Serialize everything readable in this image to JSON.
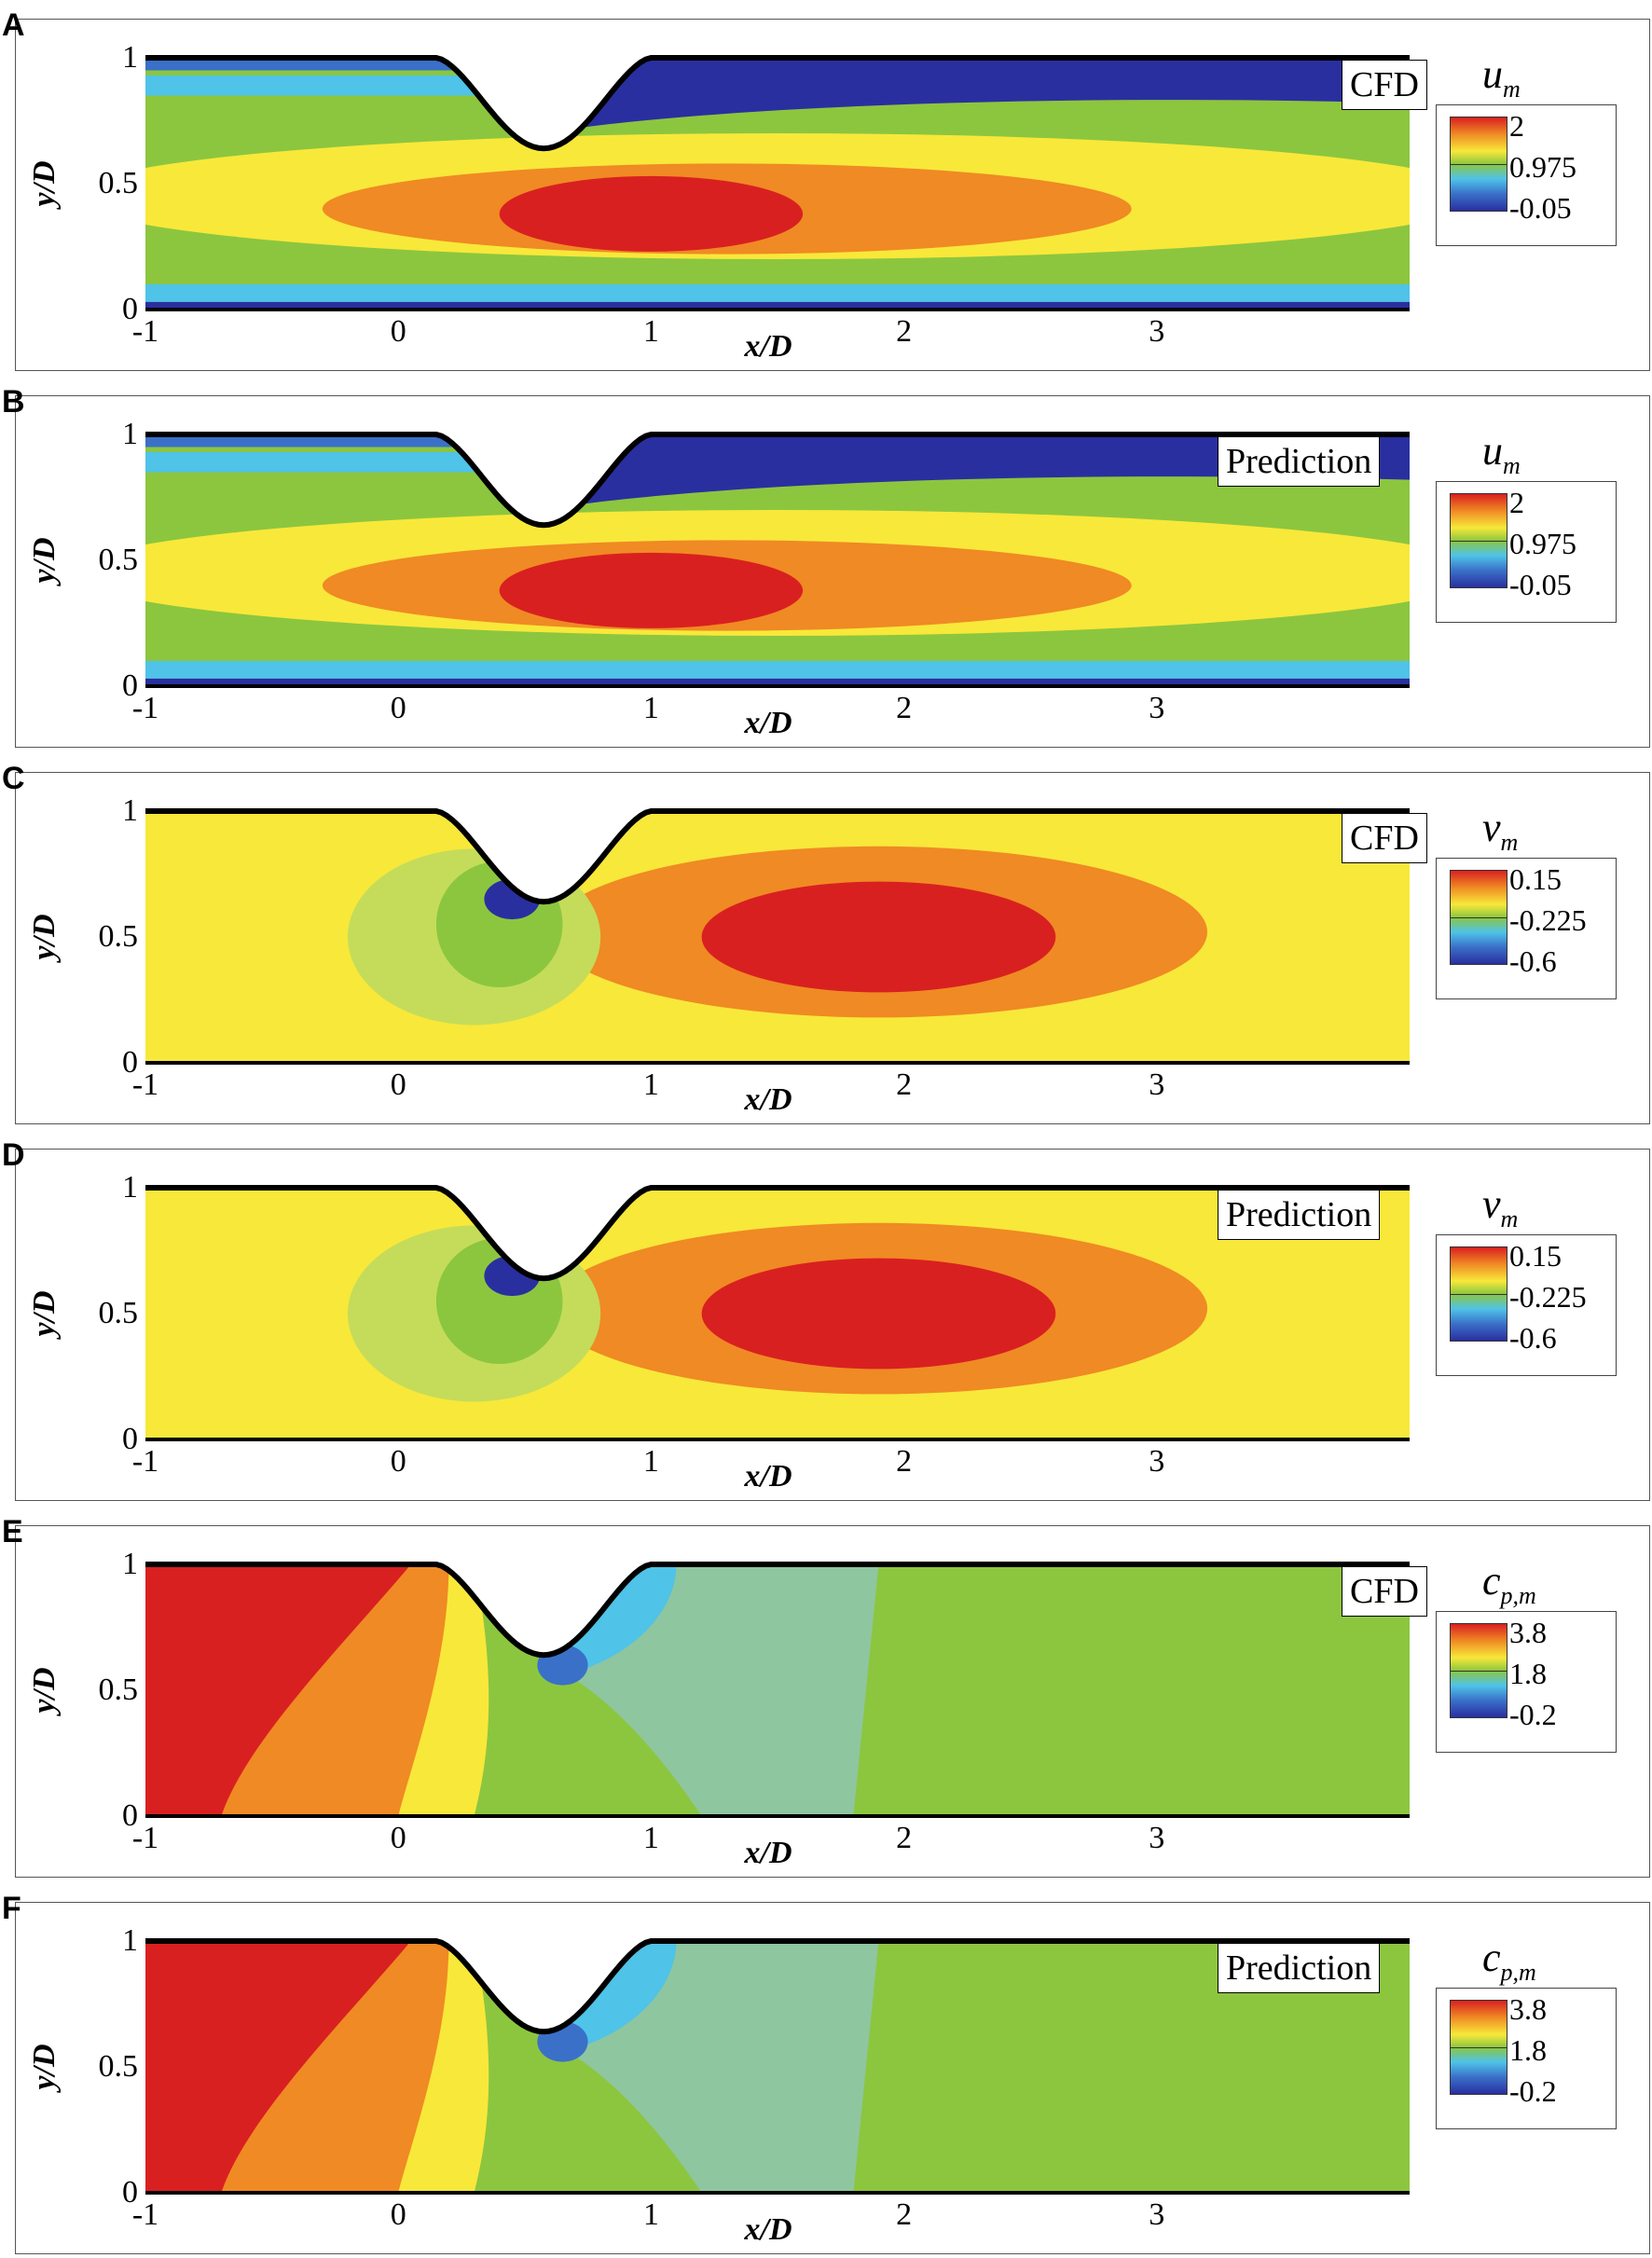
{
  "chart_data": [
    {
      "panel": "A",
      "type": "heatmap",
      "variable": "u",
      "variable_sub": "m",
      "tag": "CFD",
      "xlabel": "x/D",
      "ylabel": "y/D",
      "x_ticks": [
        "-1",
        "0",
        "1",
        "2",
        "3"
      ],
      "y_ticks": [
        "0",
        "0.5",
        "1"
      ],
      "xlim": [
        -1,
        4
      ],
      "ylim": [
        0,
        1
      ],
      "legend_ticks": [
        "2",
        "0.975",
        "-0.05"
      ],
      "colorscale": [
        -0.05,
        2
      ]
    },
    {
      "panel": "B",
      "type": "heatmap",
      "variable": "u",
      "variable_sub": "m",
      "tag": "Prediction",
      "xlabel": "x/D",
      "ylabel": "y/D",
      "x_ticks": [
        "-1",
        "0",
        "1",
        "2",
        "3"
      ],
      "y_ticks": [
        "0",
        "0.5",
        "1"
      ],
      "xlim": [
        -1,
        4
      ],
      "ylim": [
        0,
        1
      ],
      "legend_ticks": [
        "2",
        "0.975",
        "-0.05"
      ],
      "colorscale": [
        -0.05,
        2
      ]
    },
    {
      "panel": "C",
      "type": "heatmap",
      "variable": "v",
      "variable_sub": "m",
      "tag": "CFD",
      "xlabel": "x/D",
      "ylabel": "y/D",
      "x_ticks": [
        "-1",
        "0",
        "1",
        "2",
        "3"
      ],
      "y_ticks": [
        "0",
        "0.5",
        "1"
      ],
      "xlim": [
        -1,
        4
      ],
      "ylim": [
        0,
        1
      ],
      "legend_ticks": [
        "0.15",
        "-0.225",
        "-0.6"
      ],
      "colorscale": [
        -0.6,
        0.15
      ]
    },
    {
      "panel": "D",
      "type": "heatmap",
      "variable": "v",
      "variable_sub": "m",
      "tag": "Prediction",
      "xlabel": "x/D",
      "ylabel": "y/D",
      "x_ticks": [
        "-1",
        "0",
        "1",
        "2",
        "3"
      ],
      "y_ticks": [
        "0",
        "0.5",
        "1"
      ],
      "xlim": [
        -1,
        4
      ],
      "ylim": [
        0,
        1
      ],
      "legend_ticks": [
        "0.15",
        "-0.225",
        "-0.6"
      ],
      "colorscale": [
        -0.6,
        0.15
      ]
    },
    {
      "panel": "E",
      "type": "heatmap",
      "variable": "c",
      "variable_sub": "p,m",
      "tag": "CFD",
      "xlabel": "x/D",
      "ylabel": "y/D",
      "x_ticks": [
        "-1",
        "0",
        "1",
        "2",
        "3"
      ],
      "y_ticks": [
        "0",
        "0.5",
        "1"
      ],
      "xlim": [
        -1,
        4
      ],
      "ylim": [
        0,
        1
      ],
      "legend_ticks": [
        "3.8",
        "1.8",
        "-0.2"
      ],
      "colorscale": [
        -0.2,
        3.8
      ]
    },
    {
      "panel": "F",
      "type": "heatmap",
      "variable": "c",
      "variable_sub": "p,m",
      "tag": "Prediction",
      "xlabel": "x/D",
      "ylabel": "y/D",
      "x_ticks": [
        "-1",
        "0",
        "1",
        "2",
        "3"
      ],
      "y_ticks": [
        "0",
        "0.5",
        "1"
      ],
      "xlim": [
        -1,
        4
      ],
      "ylim": [
        0,
        1
      ],
      "legend_ticks": [
        "3.8",
        "1.8",
        "-0.2"
      ],
      "colorscale": [
        -0.2,
        3.8
      ]
    }
  ],
  "colors": {
    "red": "#d92020",
    "orange": "#f08a24",
    "yellow": "#f8e83a",
    "green": "#8cc63f",
    "cyan": "#4fc3e8",
    "blue": "#3a70c8",
    "navy": "#2a2fa0"
  }
}
